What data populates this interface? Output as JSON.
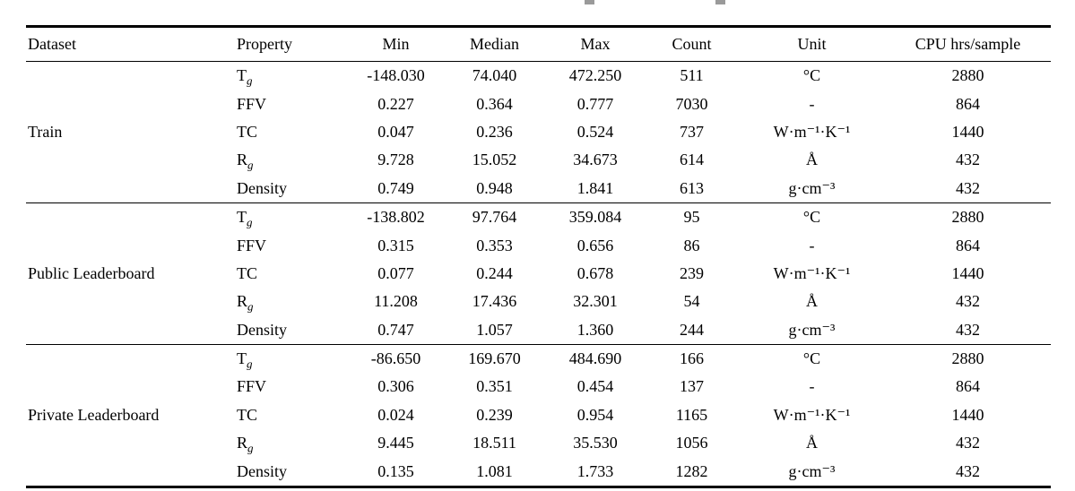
{
  "table": {
    "columns": [
      "Dataset",
      "Property",
      "Min",
      "Median",
      "Max",
      "Count",
      "Unit",
      "CPU hrs/sample"
    ],
    "groups": [
      {
        "dataset": "Train",
        "rows": [
          {
            "property": "T",
            "property_sub": "g",
            "min": "-148.030",
            "median": "74.040",
            "max": "472.250",
            "count": "511",
            "unit": "°C",
            "cpu": "2880"
          },
          {
            "property": "FFV",
            "property_sub": "",
            "min": "0.227",
            "median": "0.364",
            "max": "0.777",
            "count": "7030",
            "unit": "-",
            "cpu": "864"
          },
          {
            "property": "TC",
            "property_sub": "",
            "min": "0.047",
            "median": "0.236",
            "max": "0.524",
            "count": "737",
            "unit": "W·m⁻¹·K⁻¹",
            "cpu": "1440"
          },
          {
            "property": "R",
            "property_sub": "g",
            "min": "9.728",
            "median": "15.052",
            "max": "34.673",
            "count": "614",
            "unit": "Å",
            "cpu": "432"
          },
          {
            "property": "Density",
            "property_sub": "",
            "min": "0.749",
            "median": "0.948",
            "max": "1.841",
            "count": "613",
            "unit": "g·cm⁻³",
            "cpu": "432"
          }
        ]
      },
      {
        "dataset": "Public Leaderboard",
        "rows": [
          {
            "property": "T",
            "property_sub": "g",
            "min": "-138.802",
            "median": "97.764",
            "max": "359.084",
            "count": "95",
            "unit": "°C",
            "cpu": "2880"
          },
          {
            "property": "FFV",
            "property_sub": "",
            "min": "0.315",
            "median": "0.353",
            "max": "0.656",
            "count": "86",
            "unit": "-",
            "cpu": "864"
          },
          {
            "property": "TC",
            "property_sub": "",
            "min": "0.077",
            "median": "0.244",
            "max": "0.678",
            "count": "239",
            "unit": "W·m⁻¹·K⁻¹",
            "cpu": "1440"
          },
          {
            "property": "R",
            "property_sub": "g",
            "min": "11.208",
            "median": "17.436",
            "max": "32.301",
            "count": "54",
            "unit": "Å",
            "cpu": "432"
          },
          {
            "property": "Density",
            "property_sub": "",
            "min": "0.747",
            "median": "1.057",
            "max": "1.360",
            "count": "244",
            "unit": "g·cm⁻³",
            "cpu": "432"
          }
        ]
      },
      {
        "dataset": "Private Leaderboard",
        "rows": [
          {
            "property": "T",
            "property_sub": "g",
            "min": "-86.650",
            "median": "169.670",
            "max": "484.690",
            "count": "166",
            "unit": "°C",
            "cpu": "2880"
          },
          {
            "property": "FFV",
            "property_sub": "",
            "min": "0.306",
            "median": "0.351",
            "max": "0.454",
            "count": "137",
            "unit": "-",
            "cpu": "864"
          },
          {
            "property": "TC",
            "property_sub": "",
            "min": "0.024",
            "median": "0.239",
            "max": "0.954",
            "count": "1165",
            "unit": "W·m⁻¹·K⁻¹",
            "cpu": "1440"
          },
          {
            "property": "R",
            "property_sub": "g",
            "min": "9.445",
            "median": "18.511",
            "max": "35.530",
            "count": "1056",
            "unit": "Å",
            "cpu": "432"
          },
          {
            "property": "Density",
            "property_sub": "",
            "min": "0.135",
            "median": "1.081",
            "max": "1.733",
            "count": "1282",
            "unit": "g·cm⁻³",
            "cpu": "432"
          }
        ]
      }
    ]
  }
}
